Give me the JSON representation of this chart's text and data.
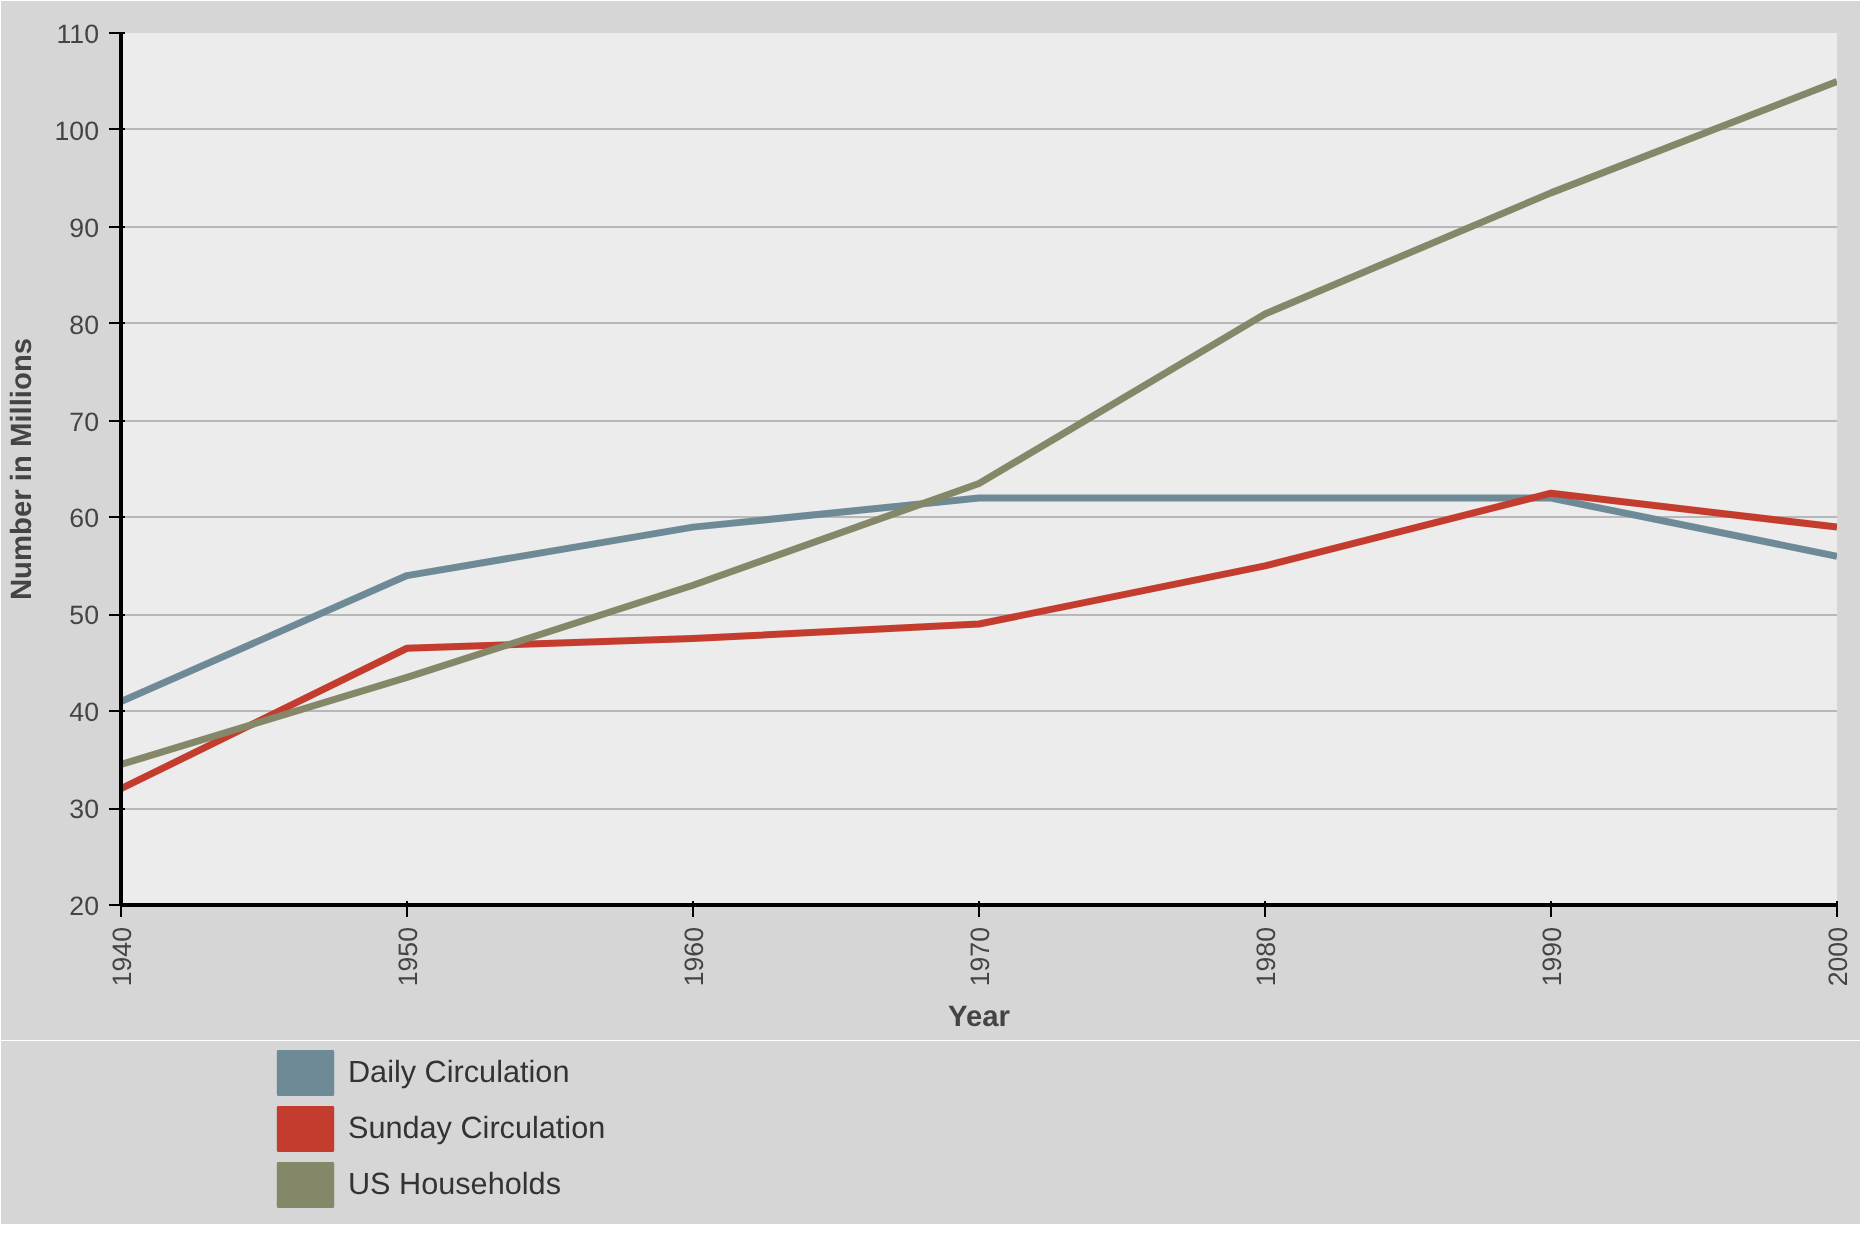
{
  "chart_data": {
    "type": "line",
    "xlabel": "Year",
    "ylabel": "Number in Millions",
    "x": [
      1940,
      1950,
      1960,
      1970,
      1980,
      1990,
      2000
    ],
    "series": [
      {
        "name": "Daily Circulation",
        "color": "#6e8a96",
        "values": [
          41,
          54,
          59,
          62,
          62,
          62,
          56
        ]
      },
      {
        "name": "Sunday Circulation",
        "color": "#c43c2e",
        "values": [
          32,
          46.5,
          47.5,
          49,
          55,
          62.5,
          59
        ]
      },
      {
        "name": "US Households",
        "color": "#858769",
        "values": [
          34.5,
          43.5,
          53,
          63.5,
          81,
          93.5,
          105
        ]
      }
    ],
    "xlim": [
      1940,
      2000
    ],
    "xticks": [
      1940,
      1950,
      1960,
      1970,
      1980,
      1990,
      2000
    ],
    "ylim": [
      20,
      110
    ],
    "yticks": [
      20,
      30,
      40,
      50,
      60,
      70,
      80,
      90,
      100,
      110
    ],
    "grid": "y",
    "legend": "bottom left",
    "marker": "none",
    "line_style": "solid"
  }
}
